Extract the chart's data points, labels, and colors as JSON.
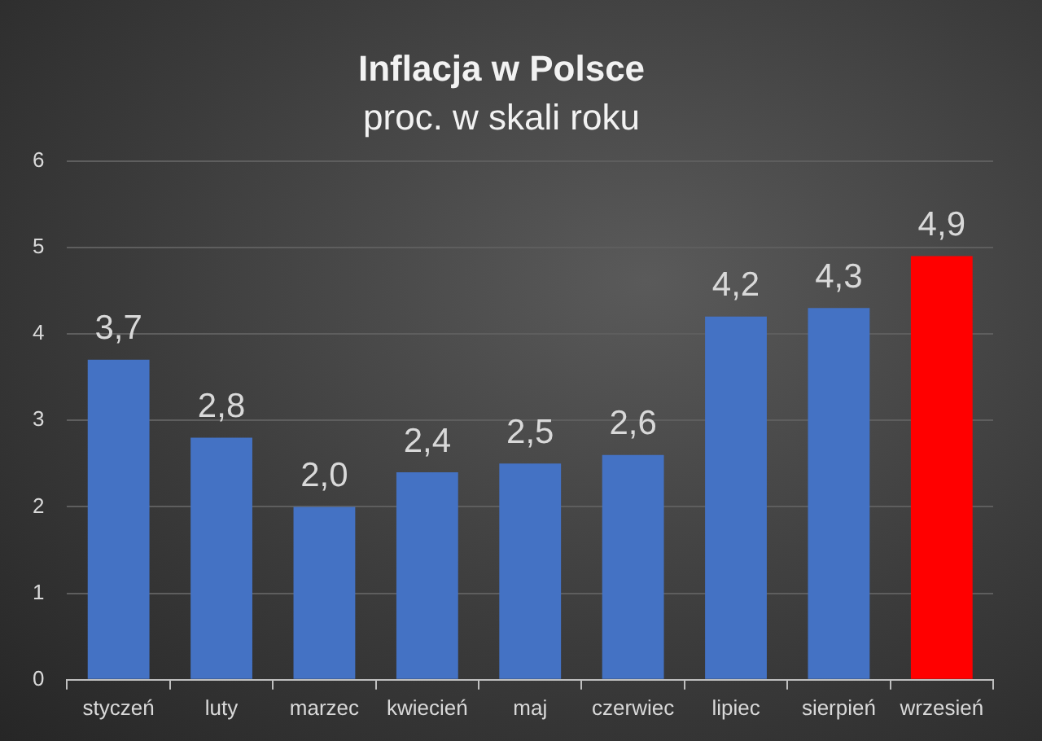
{
  "chart_data": {
    "type": "bar",
    "title": "Inflacja w Polsce",
    "subtitle": "proc. w skali roku",
    "categories": [
      "styczeń",
      "luty",
      "marzec",
      "kwiecień",
      "maj",
      "czerwiec",
      "lipiec",
      "sierpień",
      "wrzesień"
    ],
    "values": [
      3.7,
      2.8,
      2.0,
      2.4,
      2.5,
      2.6,
      4.2,
      4.3,
      4.9
    ],
    "colors": [
      "#4472c4",
      "#4472c4",
      "#4472c4",
      "#4472c4",
      "#4472c4",
      "#4472c4",
      "#4472c4",
      "#4472c4",
      "#ff0000"
    ],
    "value_labels": [
      "3,7",
      "2,8",
      "2,0",
      "2,4",
      "2,5",
      "2,6",
      "4,2",
      "4,3",
      "4,9"
    ],
    "ylim": [
      0,
      6
    ],
    "yticks": [
      0,
      1,
      2,
      3,
      4,
      5,
      6
    ],
    "grid": "y",
    "legend": false
  }
}
